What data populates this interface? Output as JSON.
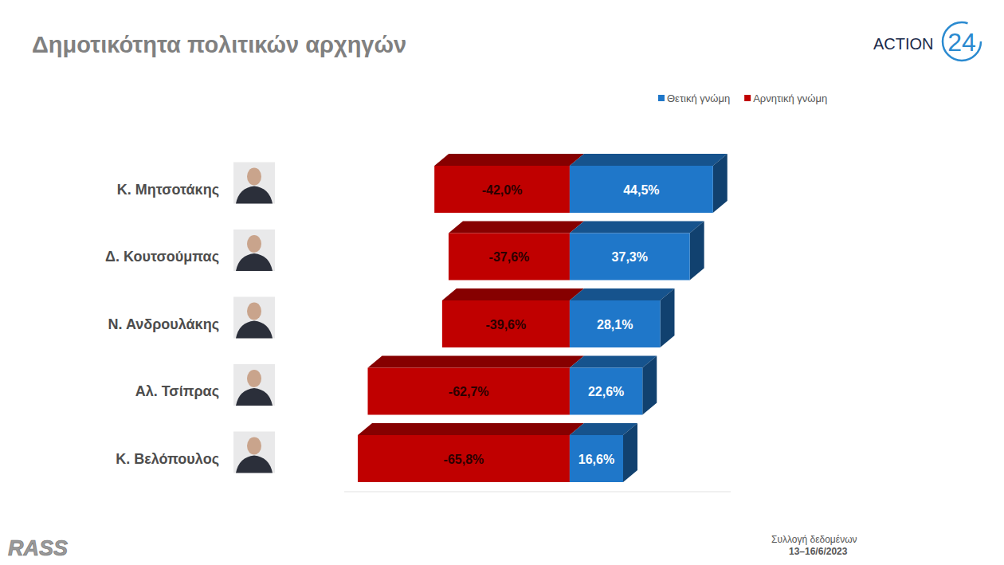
{
  "chart_data": {
    "type": "bar",
    "title": "Δημοτικότητα πολιτικών αρχηγών",
    "orientation": "horizontal",
    "stacked": true,
    "data_labels": true,
    "tick_labels": false,
    "grid": false,
    "legend": "top-right",
    "categories": [
      "Κ. Μητσοτάκης",
      "Δ. Κουτσούμπας",
      "Ν. Ανδρουλάκης",
      "Αλ. Τσίπρας",
      "Κ. Βελόπουλος"
    ],
    "series": [
      {
        "name": "Θετική γνώμη",
        "color": "#1f77c9",
        "values": [
          44.5,
          37.3,
          28.1,
          22.6,
          16.6
        ],
        "value_labels": [
          "44,5%",
          "37,3%",
          "28,1%",
          "22,6%",
          "16,6%"
        ]
      },
      {
        "name": "Αρνητική γνώμη",
        "color": "#c00000",
        "values": [
          -42.0,
          -37.6,
          -39.6,
          -62.7,
          -65.8
        ],
        "value_labels": [
          "-42,0%",
          "-37,6%",
          "-39,6%",
          "-62,7%",
          "-65,8%"
        ]
      }
    ],
    "xlim": [
      -70,
      50
    ],
    "brand": [
      "ACTION",
      "24"
    ],
    "source": "RASS",
    "annotations": [
      "Συλλογή δεδομένων",
      "13–16/6/2023"
    ]
  }
}
